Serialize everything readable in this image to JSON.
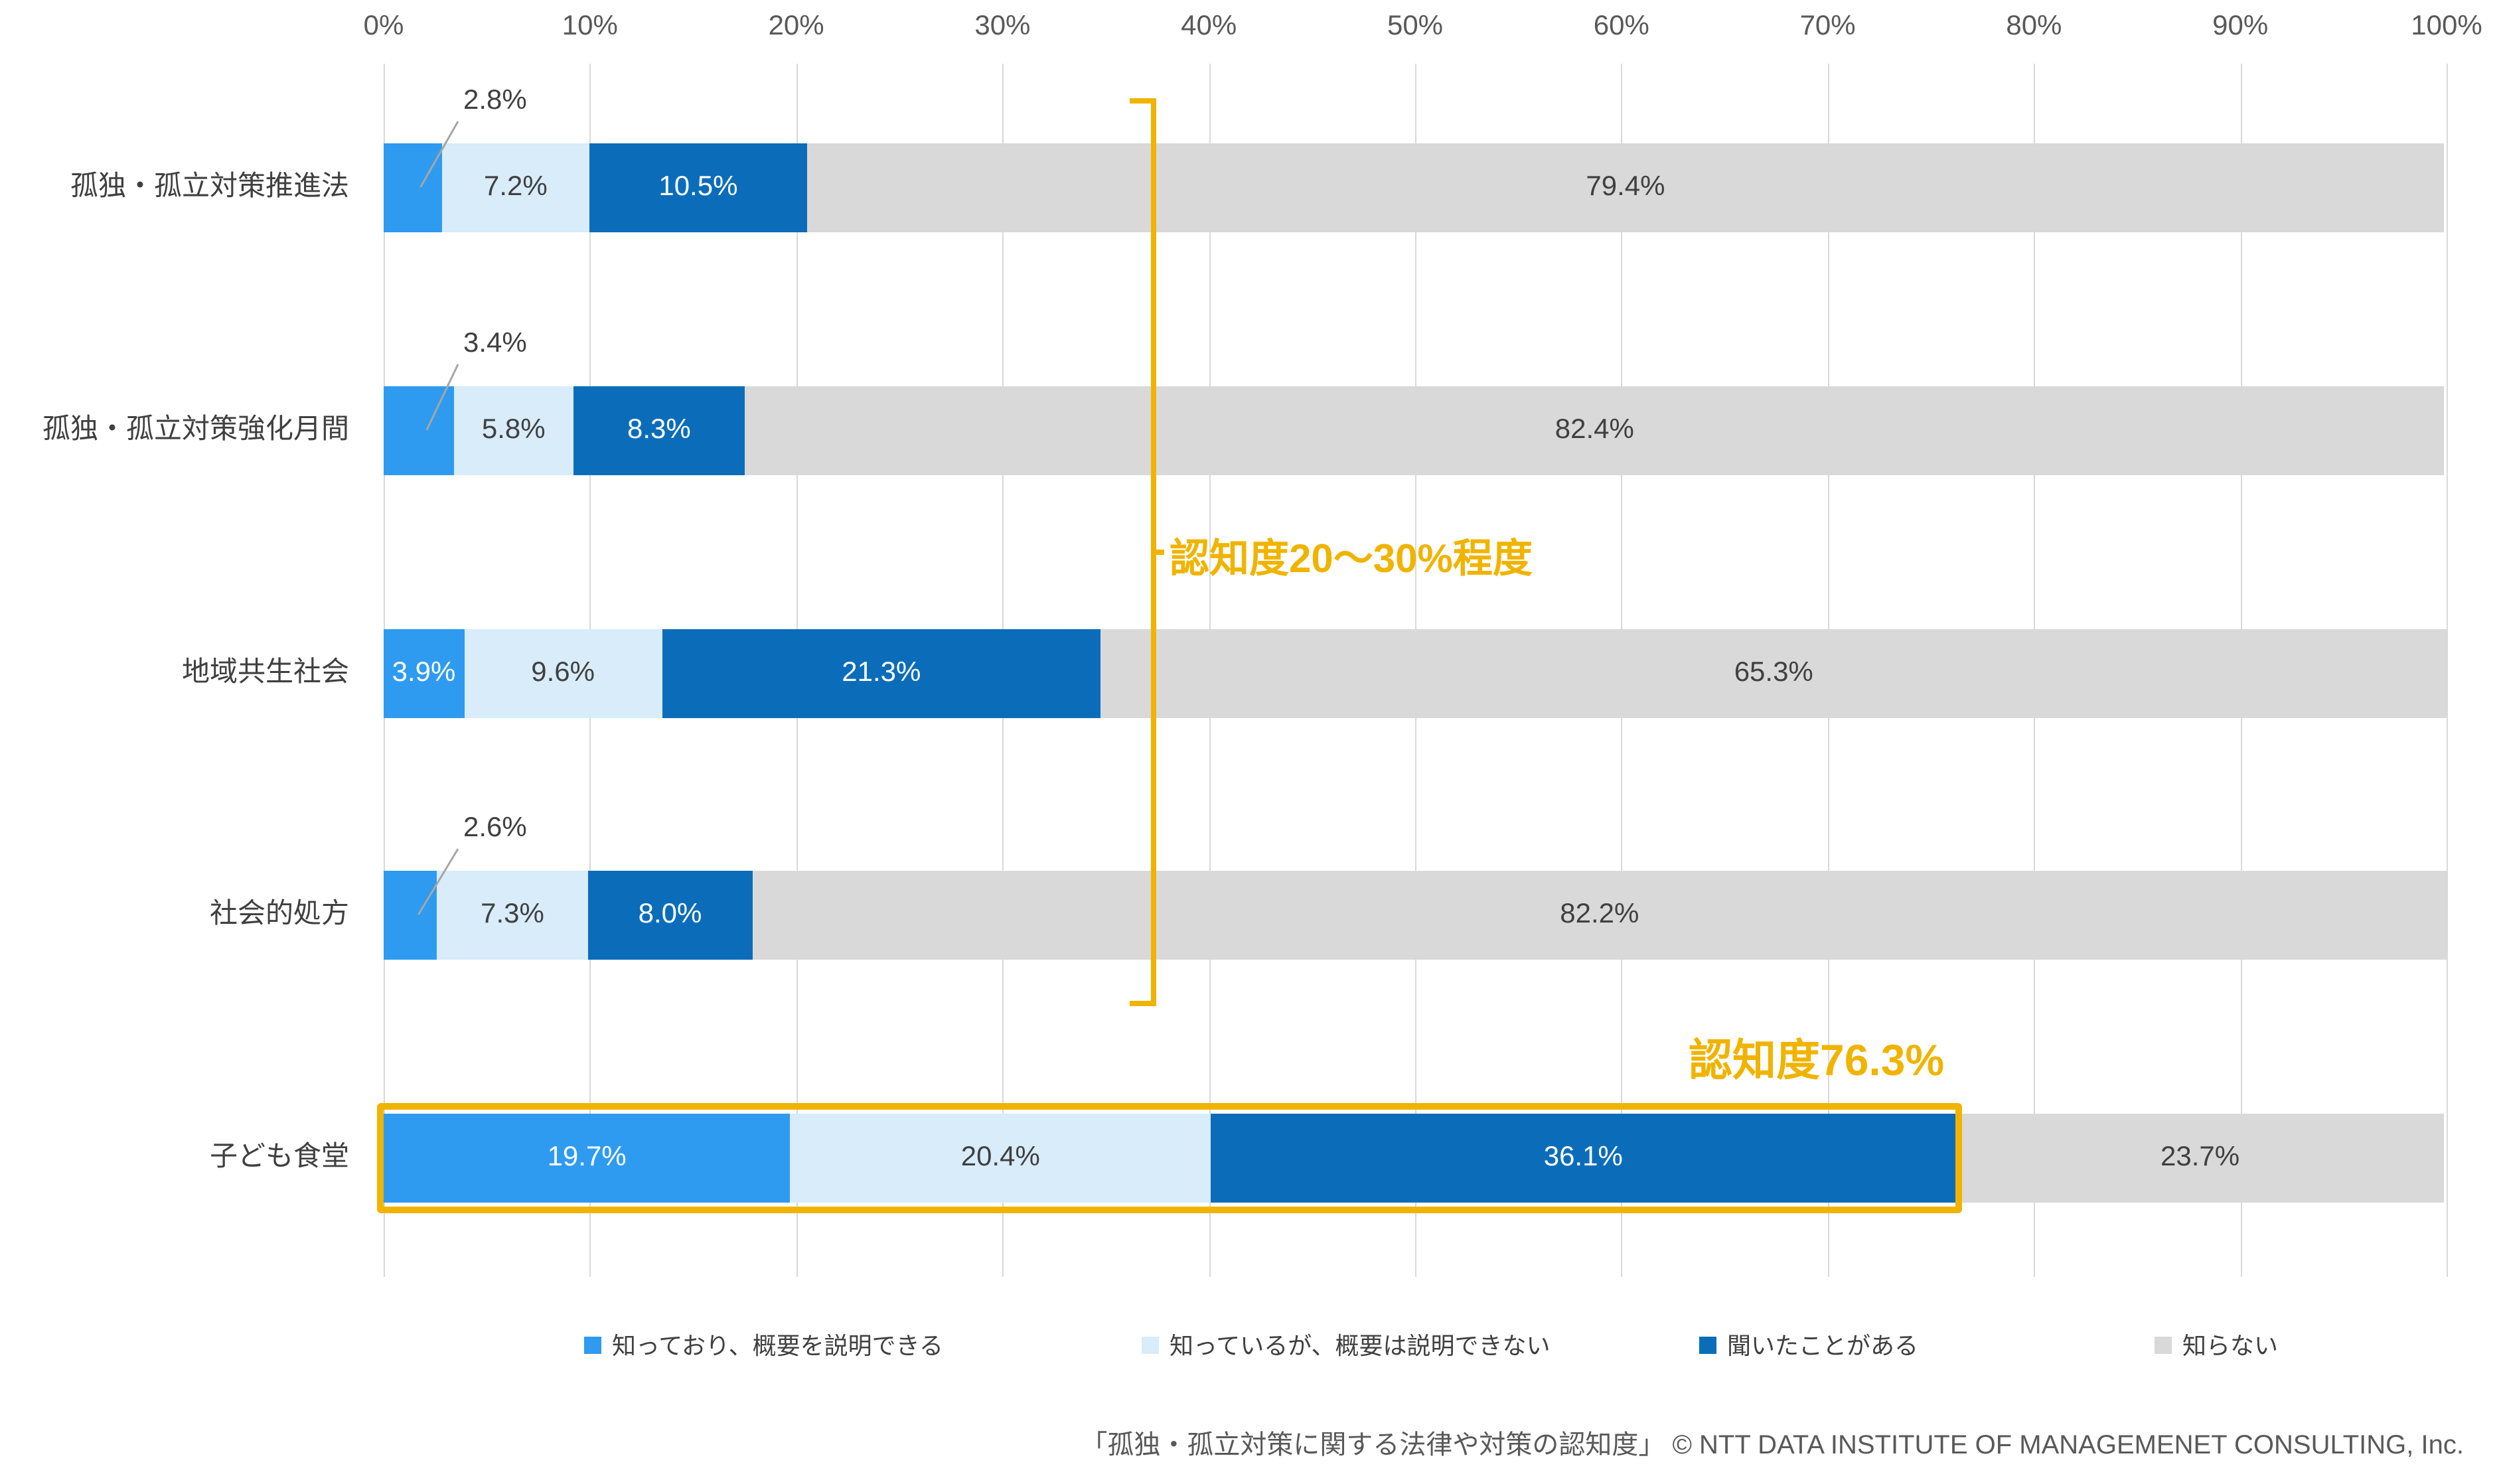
{
  "chart_data": {
    "type": "bar",
    "variant": "horizontal-stacked",
    "title": "",
    "x_axis": {
      "min": 0,
      "max": 100,
      "ticks": [
        "0%",
        "10%",
        "20%",
        "30%",
        "40%",
        "50%",
        "60%",
        "70%",
        "80%",
        "90%",
        "100%"
      ]
    },
    "grid": true,
    "legend_position": "bottom",
    "categories": [
      "孤独・孤立対策推進法",
      "孤独・孤立対策強化月間",
      "地域共生社会",
      "社会的処方",
      "子ども食堂"
    ],
    "series": [
      {
        "name": "知っており、概要を説明できる",
        "color": "#2E9BF0",
        "label_color": "#FFFFFF",
        "values": [
          2.8,
          3.4,
          3.9,
          2.6,
          19.7
        ]
      },
      {
        "name": "知っているが、概要は説明できない",
        "color": "#D8ECFA",
        "label_color": "#404040",
        "values": [
          7.2,
          5.8,
          9.6,
          7.3,
          20.4
        ]
      },
      {
        "name": "聞いたことがある",
        "color": "#0B6DB9",
        "label_color": "#FFFFFF",
        "values": [
          10.5,
          8.3,
          21.3,
          8.0,
          36.1
        ]
      },
      {
        "name": "知らない",
        "color": "#D9D9D9",
        "label_color": "#404040",
        "values": [
          79.4,
          82.4,
          65.3,
          82.2,
          23.7
        ]
      }
    ],
    "annotations": {
      "bracket_label": "認知度20～30%程度",
      "highlight_label": "認知度76.3%",
      "accent_color": "#F0B400"
    },
    "footer": "「孤独・孤立対策に関する法律や対策の認知度」 © NTT DATA INSTITUTE OF MANAGEMENET CONSULTING, Inc."
  }
}
